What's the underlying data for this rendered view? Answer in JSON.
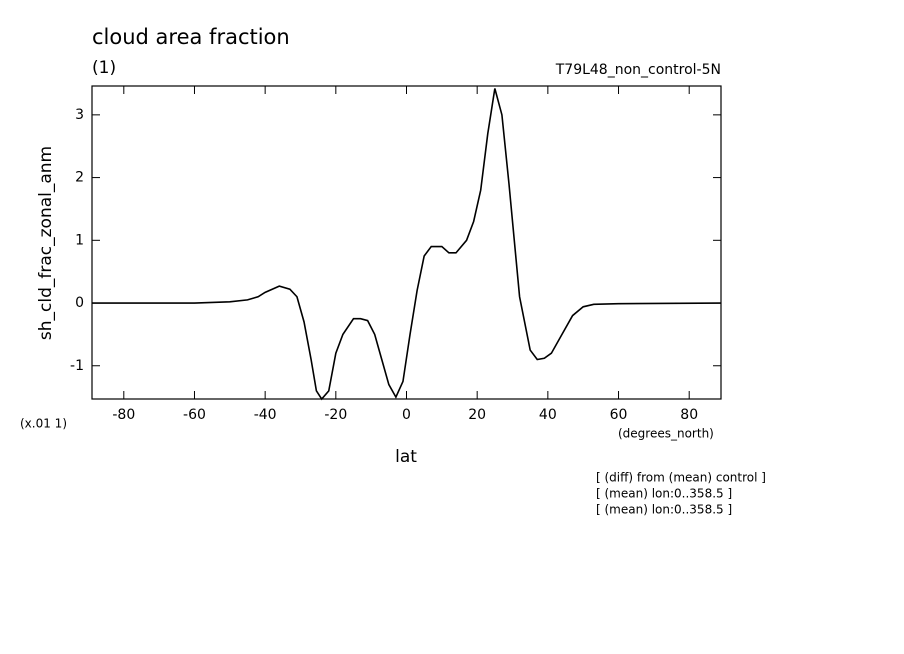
{
  "chart_data": {
    "type": "line",
    "title": "cloud area fraction",
    "subtitle": "(1)",
    "run_label": "T79L48_non_control-5N",
    "y_label": "sh_cld_frac_zonal_anm",
    "y_scale_note": "(x.01 1)",
    "x_units": "(degrees_north)",
    "x_label": "lat",
    "notes": [
      "[ (diff) from (mean) control ]",
      "[ (mean) lon:0..358.5 ]",
      "[ (mean) lon:0..358.5 ]"
    ],
    "xlim": [
      -89,
      89
    ],
    "ylim": [
      -1.53,
      3.46
    ],
    "xticks": [
      -80,
      -60,
      -40,
      -20,
      0,
      20,
      40,
      60,
      80
    ],
    "yticks": [
      -1,
      0,
      1,
      2,
      3
    ],
    "series": [
      {
        "name": "sh_cld_frac_zonal_anm",
        "color": "#000000",
        "x": [
          -89,
          -60,
          -50,
          -45,
          -42,
          -40,
          -38,
          -36,
          -33,
          -31,
          -29,
          -27,
          -25.5,
          -24,
          -22,
          -20,
          -18,
          -15,
          -13,
          -11,
          -9,
          -7,
          -5,
          -3,
          -1,
          1,
          3,
          5,
          7,
          10,
          12,
          14,
          17,
          19,
          21,
          23,
          25,
          27,
          29,
          32,
          35,
          37,
          39,
          41,
          44,
          47,
          50,
          53,
          60,
          89
        ],
        "values": [
          0,
          0,
          0.02,
          0.05,
          0.1,
          0.17,
          0.22,
          0.27,
          0.22,
          0.1,
          -0.3,
          -0.9,
          -1.4,
          -1.53,
          -1.4,
          -0.8,
          -0.5,
          -0.25,
          -0.25,
          -0.28,
          -0.5,
          -0.9,
          -1.3,
          -1.5,
          -1.25,
          -0.5,
          0.2,
          0.75,
          0.9,
          0.9,
          0.8,
          0.8,
          1.0,
          1.3,
          1.8,
          2.7,
          3.42,
          3.0,
          1.9,
          0.1,
          -0.75,
          -0.9,
          -0.88,
          -0.8,
          -0.5,
          -0.2,
          -0.06,
          -0.02,
          -0.01,
          0
        ]
      }
    ]
  }
}
